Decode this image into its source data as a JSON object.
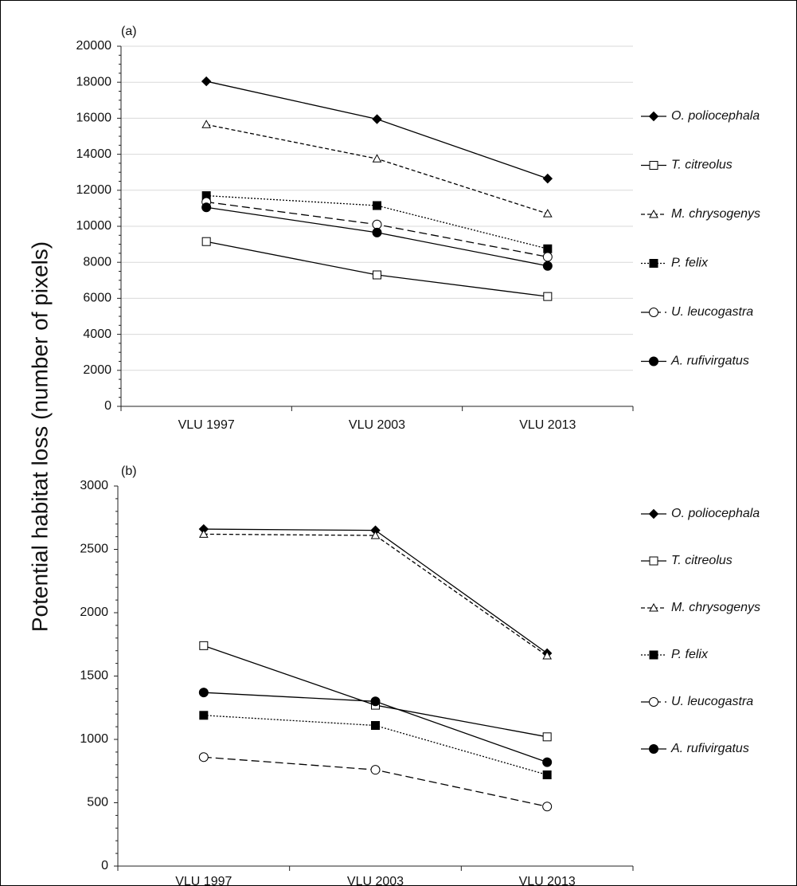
{
  "figure": {
    "ylabel": "Potential habitat loss (number of pixels)"
  },
  "chart_data": [
    {
      "type": "line",
      "panel_label": "(a)",
      "categories": [
        "VLU 1997",
        "VLU 2003",
        "VLU 2013"
      ],
      "ylim": [
        0,
        20000
      ],
      "yticks": [
        0,
        2000,
        4000,
        6000,
        8000,
        10000,
        12000,
        14000,
        16000,
        18000,
        20000
      ],
      "ylabel": "Potential habitat loss (number of pixels)",
      "grid": true,
      "legend": "right",
      "series": [
        {
          "name": "O. poliocephala",
          "marker": "diamond-filled",
          "line": "solid",
          "values": [
            18050,
            15950,
            12650
          ]
        },
        {
          "name": "T. citreolus",
          "marker": "square-open",
          "line": "solid",
          "values": [
            9150,
            7300,
            6100
          ]
        },
        {
          "name": "M. chrysogenys",
          "marker": "triangle-open",
          "line": "dashed",
          "values": [
            15650,
            13750,
            10700
          ]
        },
        {
          "name": "P. felix",
          "marker": "square-filled",
          "line": "dotted",
          "values": [
            11700,
            11150,
            8750
          ]
        },
        {
          "name": "U. leucogastra",
          "marker": "circle-open",
          "line": "longdash",
          "values": [
            11350,
            10100,
            8300
          ]
        },
        {
          "name": "A. rufivirgatus",
          "marker": "circle-filled",
          "line": "solid",
          "values": [
            11050,
            9650,
            7800
          ]
        }
      ]
    },
    {
      "type": "line",
      "panel_label": "(b)",
      "categories": [
        "VLU 1997",
        "VLU 2003",
        "VLU 2013"
      ],
      "ylim": [
        0,
        3000
      ],
      "yticks": [
        0,
        500,
        1000,
        1500,
        2000,
        2500,
        3000
      ],
      "ylabel": "Potential habitat loss (number of pixels)",
      "grid": false,
      "legend": "right",
      "series": [
        {
          "name": "O. poliocephala",
          "marker": "diamond-filled",
          "line": "solid",
          "values": [
            2660,
            2650,
            1680
          ]
        },
        {
          "name": "T. citreolus",
          "marker": "square-open",
          "line": "solid",
          "values": [
            1740,
            1270,
            1020
          ]
        },
        {
          "name": "M. chrysogenys",
          "marker": "triangle-open",
          "line": "dashed",
          "values": [
            2620,
            2610,
            1660
          ]
        },
        {
          "name": "P. felix",
          "marker": "square-filled",
          "line": "dotted",
          "values": [
            1190,
            1110,
            720
          ]
        },
        {
          "name": "U. leucogastra",
          "marker": "circle-open",
          "line": "longdash",
          "values": [
            860,
            760,
            470
          ]
        },
        {
          "name": "A. rufivirgatus",
          "marker": "circle-filled",
          "line": "solid",
          "values": [
            1370,
            1300,
            820
          ]
        }
      ]
    }
  ]
}
